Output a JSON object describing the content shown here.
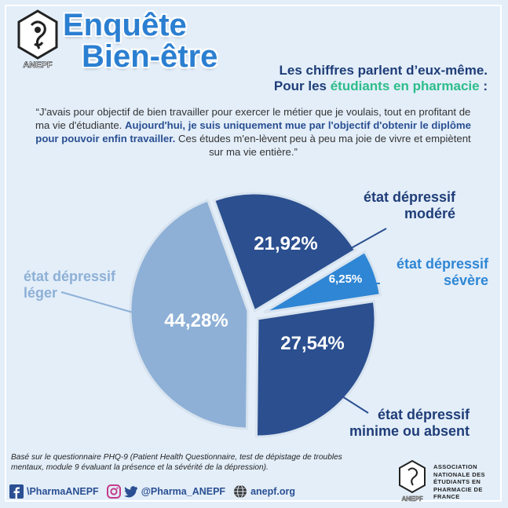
{
  "brand": {
    "logo_text": "ANEPF"
  },
  "header": {
    "title_line1": "Enquête",
    "title_line2": "Bien-être",
    "subtitle_line1": "Les chiffres parlent d’eux-même.",
    "subtitle_line2_prefix": "Pour les ",
    "subtitle_line2_highlight": "étudiants en pharmacie",
    "subtitle_line2_suffix": " :"
  },
  "quote": {
    "part1": "“J'avais pour objectif de bien travailler pour exercer le métier que je voulais, tout en profitant de ma vie d'étudiante. ",
    "part2_bold": "Aujourd'hui, je suis uniquement mue par l'objectif d'obtenir le diplôme pour pouvoir enfin travailler.",
    "part3": " Ces études m'en-lèvent peu à peu ma joie de vivre et empiètent sur ma vie entière.”"
  },
  "chart_data": {
    "type": "pie",
    "slices": [
      {
        "label_lines": [
          "état dépressif",
          "modéré"
        ],
        "value": 21.92,
        "value_label": "21,92%",
        "color": "#2b4f8f"
      },
      {
        "label_lines": [
          "état dépressif",
          "sévère"
        ],
        "value": 6.25,
        "value_label": "6,25%",
        "color": "#2f86d4"
      },
      {
        "label_lines": [
          "état dépressif",
          "minime ou absent"
        ],
        "value": 27.54,
        "value_label": "27,54%",
        "color": "#2b4f8f"
      },
      {
        "label_lines": [
          "état dépressif",
          "léger"
        ],
        "value": 44.28,
        "value_label": "44,28%",
        "color": "#8eb0d6"
      }
    ],
    "start_angle_deg": 60
  },
  "footnote": "Basé sur le questionnaire PHQ-9 (Patient Health Questionnaire, test de dépistage de troubles mentaux, module 9 évaluant la présence et la sévérité de la dépression).",
  "social": {
    "facebook": "\\PharmaANEPF",
    "instagram_twitter": "@Pharma_ANEPF",
    "website": "anepf.org"
  },
  "association": {
    "logo_text": "ANEPF",
    "lines": [
      "ASSOCIATION",
      "NATIONALE DES",
      "ÉTUDIANTS EN",
      "PHARMACIE DE",
      "FRANCE"
    ]
  },
  "colors": {
    "background": "#e3eef9",
    "title_blue": "#2b7fd1",
    "navy": "#1f3d78",
    "highlight_green": "#2dbd8a"
  }
}
